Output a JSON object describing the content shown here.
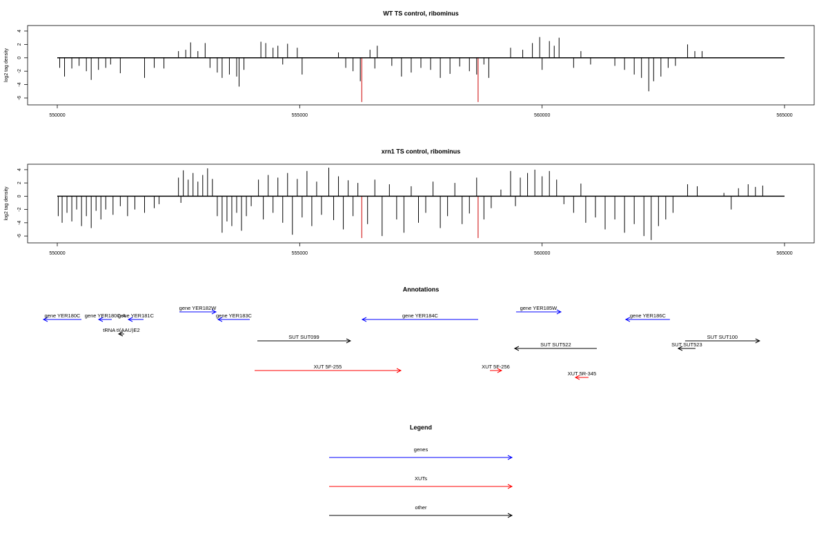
{
  "chart_data": [
    {
      "type": "spike",
      "title": "WT TS control, ribominus",
      "ylabel": "log2 tag density",
      "xlim": [
        549388,
        565612
      ],
      "ylim": [
        -7.03,
        4.82
      ],
      "xticks": [
        550000,
        555000,
        560000,
        565000
      ],
      "yticks": [
        -6,
        -4,
        -2,
        0,
        2,
        4
      ],
      "color": "#000000",
      "x": [
        550050,
        550150,
        550300,
        550450,
        550600,
        550700,
        550850,
        551000,
        551100,
        551300,
        551800,
        552000,
        552200,
        552500,
        552650,
        552750,
        552900,
        553050,
        553150,
        553300,
        553400,
        553550,
        553700,
        553750,
        553850,
        554200,
        554300,
        554450,
        554550,
        554650,
        554750,
        554950,
        555050,
        555800,
        555950,
        556100,
        556250,
        556450,
        556550,
        556600,
        556900,
        557100,
        557300,
        557500,
        557700,
        557900,
        558100,
        558300,
        558500,
        558650,
        558800,
        558900,
        559350,
        559600,
        559800,
        559950,
        560000,
        560150,
        560250,
        560350,
        560650,
        560800,
        561000,
        561500,
        561700,
        561900,
        562050,
        562200,
        562300,
        562450,
        562600,
        562750,
        563000,
        563150,
        563300
      ],
      "values": [
        -1.5,
        -2.8,
        -1.6,
        -1.2,
        -2.0,
        -3.3,
        -1.8,
        -1.5,
        -1.0,
        -2.3,
        -3.0,
        -1.5,
        -1.6,
        1.0,
        1.2,
        2.3,
        1.0,
        2.2,
        -1.5,
        -2.2,
        -3.0,
        -2.5,
        -2.8,
        -4.3,
        -1.8,
        2.4,
        2.2,
        1.5,
        1.8,
        -1.0,
        2.1,
        1.5,
        -2.5,
        0.8,
        -1.5,
        -2.0,
        -3.5,
        1.2,
        -1.6,
        1.8,
        -1.2,
        -2.8,
        -2.2,
        -1.5,
        -1.8,
        -3.0,
        -2.4,
        -1.3,
        -2.0,
        -2.5,
        -1.0,
        -3.0,
        1.5,
        1.2,
        2.2,
        3.1,
        -1.8,
        2.5,
        1.8,
        3.0,
        -1.5,
        1.0,
        -1.0,
        -1.2,
        -1.8,
        -2.5,
        -3.0,
        -5.0,
        -3.5,
        -2.8,
        -1.5,
        -1.2,
        2.0,
        1.0,
        1.0
      ],
      "highlights": {
        "color": "#cc0000",
        "x": [
          556280,
          558680
        ],
        "values": [
          -6.6,
          -6.6
        ]
      }
    },
    {
      "type": "spike",
      "title": "xrn1 TS control, ribominus",
      "ylabel": "log2 tag density",
      "xlim": [
        549388,
        565612
      ],
      "ylim": [
        -7.03,
        4.82
      ],
      "xticks": [
        550000,
        555000,
        560000,
        565000
      ],
      "yticks": [
        -6,
        -4,
        -2,
        0,
        2,
        4
      ],
      "color": "#000000",
      "x": [
        550020,
        550100,
        550200,
        550300,
        550400,
        550500,
        550600,
        550700,
        550800,
        550900,
        551000,
        551150,
        551300,
        551450,
        551600,
        551800,
        552000,
        552100,
        552500,
        552550,
        552600,
        552700,
        552800,
        552900,
        553000,
        553100,
        553200,
        553300,
        553400,
        553500,
        553600,
        553700,
        553800,
        553900,
        554000,
        554150,
        554250,
        554350,
        554450,
        554550,
        554650,
        554750,
        554850,
        554950,
        555050,
        555150,
        555250,
        555350,
        555450,
        555600,
        555700,
        555800,
        555900,
        556000,
        556100,
        556200,
        556400,
        556550,
        556700,
        556850,
        557000,
        557150,
        557300,
        557450,
        557600,
        557750,
        557900,
        558050,
        558200,
        558350,
        558500,
        558650,
        558800,
        558950,
        559150,
        559350,
        559450,
        559550,
        559700,
        559850,
        560000,
        560150,
        560300,
        560450,
        560650,
        560800,
        560900,
        561100,
        561300,
        561500,
        561700,
        561900,
        562100,
        562250,
        562400,
        562550,
        562700,
        563000,
        563200,
        563750,
        563900,
        564050,
        564250,
        564400,
        564550
      ],
      "values": [
        -3.0,
        -4.0,
        -2.5,
        -3.8,
        -2.0,
        -4.5,
        -3.0,
        -4.8,
        -2.2,
        -3.5,
        -2.0,
        -2.8,
        -1.5,
        -3.0,
        -2.0,
        -2.5,
        -1.8,
        -1.2,
        2.8,
        -1.0,
        3.9,
        2.5,
        3.5,
        2.2,
        3.2,
        4.2,
        2.6,
        -3.0,
        -5.5,
        -3.8,
        -4.5,
        -2.5,
        -5.2,
        -3.0,
        -1.5,
        2.5,
        -3.5,
        3.2,
        -2.5,
        2.8,
        -4.0,
        3.5,
        -5.8,
        2.6,
        -3.2,
        3.8,
        -4.5,
        2.2,
        -2.8,
        4.3,
        -3.6,
        3.0,
        -5.0,
        2.4,
        -3.0,
        2.0,
        -4.2,
        2.5,
        -6.0,
        1.8,
        -3.5,
        -5.5,
        1.5,
        -4.0,
        -2.5,
        2.2,
        -4.8,
        -3.0,
        2.0,
        -4.2,
        -2.6,
        2.8,
        -3.5,
        -1.8,
        1.0,
        3.8,
        -1.5,
        2.8,
        3.5,
        4.0,
        3.0,
        3.8,
        2.5,
        -1.2,
        -2.5,
        1.9,
        -4.0,
        -3.2,
        -5.0,
        -3.5,
        -5.5,
        -4.2,
        -6.0,
        -6.6,
        -4.5,
        -3.5,
        -2.5,
        1.8,
        1.5,
        0.5,
        -2.0,
        1.2,
        1.8,
        1.4,
        1.6
      ],
      "highlights": {
        "color": "#cc0000",
        "x": [
          556280,
          558680
        ],
        "values": [
          -6.3,
          -6.3
        ]
      }
    },
    {
      "type": "annotation",
      "title": "Annotations",
      "xlim": [
        549388,
        565612
      ],
      "features": [
        {
          "name": "gene YER180C",
          "color": "#0000ff",
          "strand": "-",
          "start": 549715,
          "end": 550498
        },
        {
          "name": "gene YER180C-A",
          "color": "#0000ff",
          "strand": "-",
          "start": 550854,
          "end": 551124
        },
        {
          "name": "gene YER181C",
          "color": "#0000ff",
          "strand": "-",
          "start": 551466,
          "end": 551779
        },
        {
          "name": "gene YER182W",
          "color": "#0000ff",
          "strand": "+",
          "start": 552519,
          "end": 553273
        },
        {
          "name": "gene YER183C",
          "color": "#0000ff",
          "strand": "-",
          "start": 553316,
          "end": 553970
        },
        {
          "name": "tRNA tI(AAU)E2",
          "color": "#000000",
          "strand": "-",
          "start": 551266,
          "end": 551380
        },
        {
          "name": "SUT SUT099",
          "color": "#000000",
          "strand": "+",
          "start": 554127,
          "end": 556048
        },
        {
          "name": "gene YER184C",
          "color": "#0000ff",
          "strand": "-",
          "start": 556290,
          "end": 558681
        },
        {
          "name": "gene YER185W",
          "color": "#0000ff",
          "strand": "+",
          "start": 559463,
          "end": 560388
        },
        {
          "name": "SUT SUT522",
          "color": "#000000",
          "strand": "-",
          "start": 559434,
          "end": 561128
        },
        {
          "name": "gene YER186C",
          "color": "#0000ff",
          "strand": "-",
          "start": 561725,
          "end": 562636
        },
        {
          "name": "SUT SUT523",
          "color": "#000000",
          "strand": "-",
          "start": 562807,
          "end": 563163
        },
        {
          "name": "SUT SUT100",
          "color": "#000000",
          "strand": "+",
          "start": 562949,
          "end": 564486
        },
        {
          "name": "XUT 5F-255",
          "color": "#ff0000",
          "strand": "+",
          "start": 554070,
          "end": 557087
        },
        {
          "name": "XUT 5F-256",
          "color": "#ff0000",
          "strand": "+",
          "start": 558923,
          "end": 559164
        },
        {
          "name": "XUT 5R-345",
          "color": "#ff0000",
          "strand": "-",
          "start": 560687,
          "end": 560957
        }
      ]
    },
    {
      "type": "legend",
      "title": "Legend",
      "entries": [
        {
          "name": "genes",
          "color": "#0000ff"
        },
        {
          "name": "XUTs",
          "color": "#ff0000"
        },
        {
          "name": "other",
          "color": "#000000"
        }
      ]
    }
  ]
}
